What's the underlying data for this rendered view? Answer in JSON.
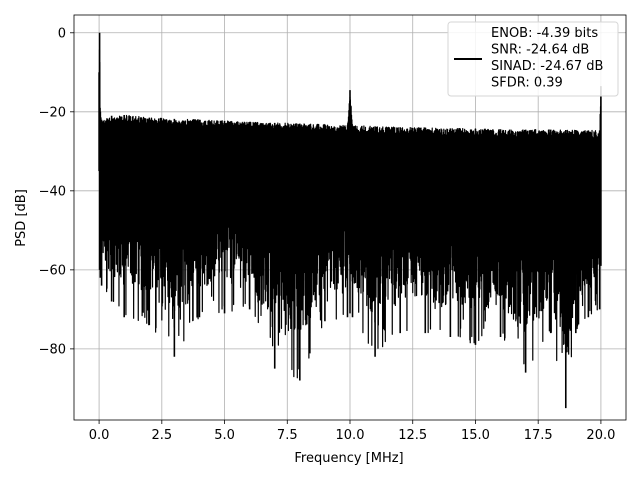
{
  "chart_data": {
    "type": "line",
    "xlabel": "Frequency [MHz]",
    "ylabel": "PSD [dB]",
    "xlim": [
      -1.0,
      21.0
    ],
    "ylim": [
      -98.0,
      4.5
    ],
    "xticks": [
      0.0,
      2.5,
      5.0,
      7.5,
      10.0,
      12.5,
      15.0,
      17.5,
      20.0
    ],
    "xtick_labels": [
      "0.0",
      "2.5",
      "5.0",
      "7.5",
      "10.0",
      "12.5",
      "15.0",
      "17.5",
      "20.0"
    ],
    "yticks": [
      0,
      -20,
      -40,
      -60,
      -80
    ],
    "ytick_labels": [
      "0",
      "−20",
      "−40",
      "−60",
      "−80"
    ],
    "grid": true,
    "legend": {
      "position": "top-right",
      "lines": [
        "ENOB: -4.39 bits",
        "SNR: -24.64 dB",
        "SINAD: -24.67 dB",
        "SFDR: 0.39"
      ]
    },
    "series": [
      {
        "color": "#000000",
        "x": [
          0.0,
          0.02,
          0.05,
          0.1,
          0.5,
          1.0,
          2.0,
          3.0,
          4.0,
          5.0,
          6.0,
          7.0,
          8.0,
          9.0,
          9.9,
          10.0,
          10.1,
          11.0,
          12.0,
          13.0,
          14.0,
          15.0,
          16.0,
          17.0,
          18.0,
          18.6,
          19.0,
          19.5,
          19.95,
          20.0
        ],
        "y": [
          -10.0,
          0.0,
          -20.0,
          -22.0,
          -21.0,
          -20.8,
          -21.5,
          -21.8,
          -22.0,
          -22.3,
          -22.6,
          -22.8,
          -23.0,
          -23.2,
          -23.4,
          -14.5,
          -23.5,
          -23.7,
          -23.9,
          -24.0,
          -24.2,
          -24.3,
          -24.4,
          -24.5,
          -24.5,
          -24.6,
          -24.6,
          -24.7,
          -24.7,
          -13.5
        ],
        "y_min_envelope": [
          -35.0,
          -60.0,
          -62.0,
          -64.0,
          -68.0,
          -72.0,
          -74.0,
          -82.0,
          -72.0,
          -71.0,
          -70.0,
          -85.0,
          -88.0,
          -73.0,
          -72.0,
          -71.0,
          -72.0,
          -82.0,
          -76.0,
          -76.0,
          -77.0,
          -79.0,
          -77.0,
          -86.0,
          -76.0,
          -95.0,
          -76.0,
          -72.0,
          -70.0,
          -59.0
        ]
      }
    ]
  }
}
